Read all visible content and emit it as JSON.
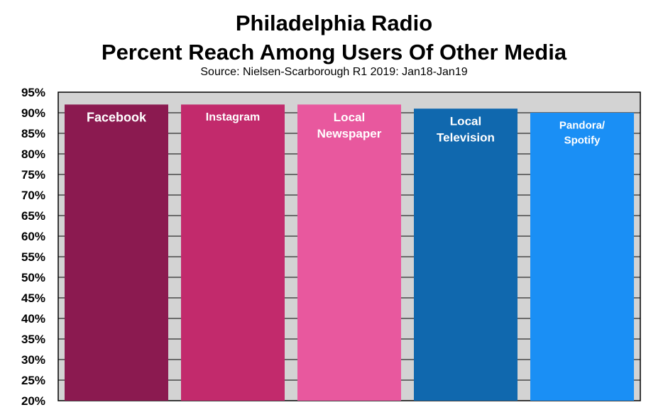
{
  "chart_data": {
    "type": "bar",
    "title": [
      "Philadelphia Radio",
      "Percent Reach Among Users Of Other Media"
    ],
    "subtitle": "Source: Nielsen-Scarborough R1 2019: Jan18-Jan19",
    "categories": [
      [
        "Facebook"
      ],
      [
        "Instagram"
      ],
      [
        "Local",
        "Newspaper"
      ],
      [
        "Local",
        "Television"
      ],
      [
        "Pandora/",
        "Spotify"
      ]
    ],
    "values": [
      92,
      92,
      92,
      91,
      90
    ],
    "colors": [
      "#8B1A50",
      "#C22A6C",
      "#E8589E",
      "#1068AE",
      "#1A8FF5"
    ],
    "ylim": [
      20,
      95
    ],
    "yticks": [
      "20%",
      "25%",
      "30%",
      "35%",
      "40%",
      "45%",
      "50%",
      "55%",
      "60%",
      "65%",
      "70%",
      "75%",
      "80%",
      "85%",
      "90%",
      "95%"
    ],
    "plot_background": "#D3D3D3",
    "grid": true,
    "legend": "none"
  }
}
